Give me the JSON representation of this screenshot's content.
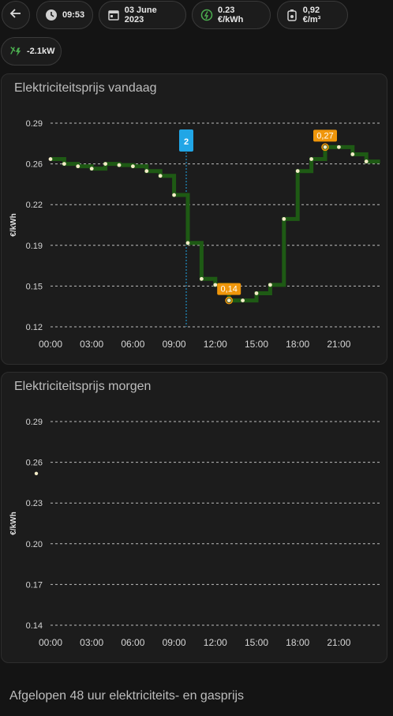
{
  "header": {
    "time": "09:53",
    "date": "03 June 2023",
    "electricity_price": "0.23 €/kWh",
    "gas_price": "0,92 €/m³",
    "power": "-2.1kW"
  },
  "icons": {
    "back": "arrow-left-icon",
    "time": "clock-icon",
    "date": "calendar-icon",
    "electricity": "euro-lightning-icon",
    "gas": "gas-meter-icon",
    "power": "transmission-tower-icon"
  },
  "cards": {
    "today_title": "Elektriciteitsprijs vandaag",
    "tomorrow_title": "Elektriciteitsprijs morgen"
  },
  "footer": {
    "title": "Afgelopen 48 uur elektriciteits- en gasprijs"
  },
  "colors": {
    "accent_step": "#1e5a14",
    "accent_step_light": "#4a5a1a",
    "min_marker": "#f0960a",
    "now_line": "#21a6e6",
    "point": "#f4ecc8"
  },
  "chart_data": [
    {
      "type": "line",
      "title": "Elektriciteitsprijs vandaag",
      "ylabel": "€/kWh",
      "ylim": [
        0.12,
        0.29
      ],
      "yticks": [
        "0.29",
        "0.26",
        "0.22",
        "0.19",
        "0.15",
        "0.12"
      ],
      "xticks": [
        "00:00",
        "03:00",
        "06:00",
        "09:00",
        "12:00",
        "15:00",
        "18:00",
        "21:00"
      ],
      "x": [
        0,
        1,
        2,
        3,
        4,
        5,
        6,
        7,
        8,
        9,
        10,
        11,
        12,
        13,
        14,
        15,
        16,
        17,
        18,
        19,
        20,
        21,
        22,
        23
      ],
      "values": [
        0.26,
        0.256,
        0.254,
        0.252,
        0.256,
        0.255,
        0.254,
        0.25,
        0.246,
        0.23,
        0.19,
        0.16,
        0.155,
        0.142,
        0.142,
        0.148,
        0.155,
        0.21,
        0.25,
        0.26,
        0.27,
        0.27,
        0.264,
        0.258
      ],
      "current_marker_label": "2",
      "current_hour": 10,
      "min_label": "0,14",
      "max_label": "0,27"
    },
    {
      "type": "line",
      "title": "Elektriciteitsprijs morgen",
      "ylabel": "€/kWh",
      "ylim": [
        0.14,
        0.29
      ],
      "yticks": [
        "0.29",
        "0.26",
        "0.23",
        "0.20",
        "0.17",
        "0.14"
      ],
      "xticks": [
        "00:00",
        "03:00",
        "06:00",
        "09:00",
        "12:00",
        "15:00",
        "18:00",
        "21:00"
      ],
      "x": [],
      "values": []
    }
  ]
}
